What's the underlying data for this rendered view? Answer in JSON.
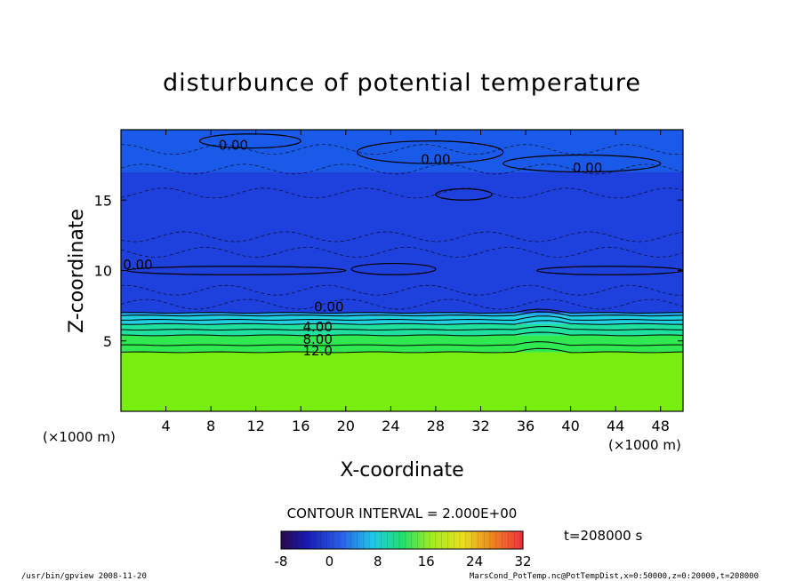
{
  "chart_data": {
    "type": "heatmap",
    "title": "disturbunce of potential temperature",
    "xlabel": "X-coordinate",
    "ylabel": "Z-coordinate",
    "x_unit_left": "(×1000 m)",
    "x_unit_right": "(×1000 m)",
    "xlim": [
      0,
      50
    ],
    "ylim": [
      0,
      20
    ],
    "xticks": [
      "4",
      "8",
      "12",
      "16",
      "20",
      "24",
      "28",
      "32",
      "36",
      "40",
      "44",
      "48"
    ],
    "yticks": [
      "5",
      "10",
      "15"
    ],
    "xtick_values": [
      4,
      8,
      12,
      16,
      20,
      24,
      28,
      32,
      36,
      40,
      44,
      48
    ],
    "ytick_values": [
      5,
      10,
      15
    ],
    "field_bands": [
      {
        "z_from": 0,
        "z_to": 4.2,
        "value": 16
      },
      {
        "z_from": 4.2,
        "z_to": 5.4,
        "value": 12
      },
      {
        "z_from": 5.4,
        "z_to": 6.2,
        "value": 8
      },
      {
        "z_from": 6.2,
        "z_to": 6.8,
        "value": 4
      },
      {
        "z_from": 6.8,
        "z_to": 7.0,
        "value": 2
      },
      {
        "z_from": 7.0,
        "z_to": 17.0,
        "value": -4
      },
      {
        "z_from": 17.0,
        "z_to": 20,
        "value": -2
      }
    ],
    "contour_labels": [
      {
        "text": "0.00",
        "x": 18.5,
        "z": 7.4
      },
      {
        "text": "4.00",
        "x": 17.5,
        "z": 6.0
      },
      {
        "text": "8.00",
        "x": 17.5,
        "z": 5.1
      },
      {
        "text": "12.0",
        "x": 17.5,
        "z": 4.3
      },
      {
        "text": "0.00",
        "x": 1.5,
        "z": 10.4
      },
      {
        "text": "0.00",
        "x": 10.0,
        "z": 18.9
      },
      {
        "text": "0.00",
        "x": 28.0,
        "z": 17.9
      },
      {
        "text": "0.00",
        "x": 41.5,
        "z": 17.3
      }
    ],
    "contour_interval_label": "CONTOUR INTERVAL = 2.000E+00",
    "time_label": "t=208000 s",
    "colorbar": {
      "min": -8,
      "max": 32,
      "ticks": [
        "-8",
        "0",
        "8",
        "16",
        "24",
        "32"
      ],
      "tick_values": [
        -8,
        0,
        8,
        16,
        24,
        32
      ]
    },
    "grid": false
  },
  "footer": {
    "left": "/usr/bin/gpview  2008-11-20",
    "right": "MarsCond_PotTemp.nc@PotTempDist,x=0:50000,z=0:20000,t=208000"
  }
}
